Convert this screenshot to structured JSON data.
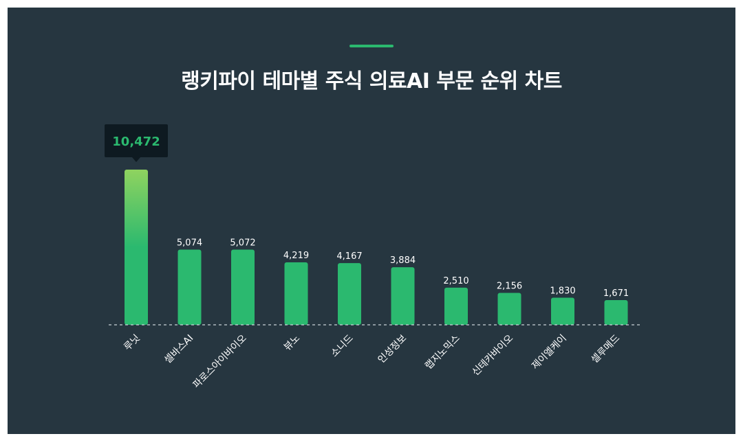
{
  "title": "랭키파이 테마별 주식 의료AI 부문 순위 차트",
  "colors": {
    "background": "#263640",
    "bar": "#2bb96f",
    "bar_top_highlight": "#8fd35f",
    "tooltip_bg": "#0e1a21",
    "tooltip_text": "#2bb96f",
    "text": "#ffffff"
  },
  "chart_data": {
    "type": "bar",
    "title": "랭키파이 테마별 주식 의료AI 부문 순위 차트",
    "categories": [
      "루닛",
      "셀바스AI",
      "파로스아이바이오",
      "뷰노",
      "소니드",
      "인성정보",
      "랩지노믹스",
      "신테카바이오",
      "제이엘케이",
      "셀루메드"
    ],
    "values": [
      10472,
      5074,
      5072,
      4219,
      4167,
      3884,
      2510,
      2156,
      1830,
      1671
    ],
    "value_labels": [
      "10,472",
      "5,074",
      "5,072",
      "4,219",
      "4,167",
      "3,884",
      "2,510",
      "2,156",
      "1,830",
      "1,671"
    ],
    "highlighted_index": 0,
    "ylim": [
      0,
      10472
    ],
    "grid": false,
    "legend": "none",
    "xlabel": "",
    "ylabel": ""
  }
}
